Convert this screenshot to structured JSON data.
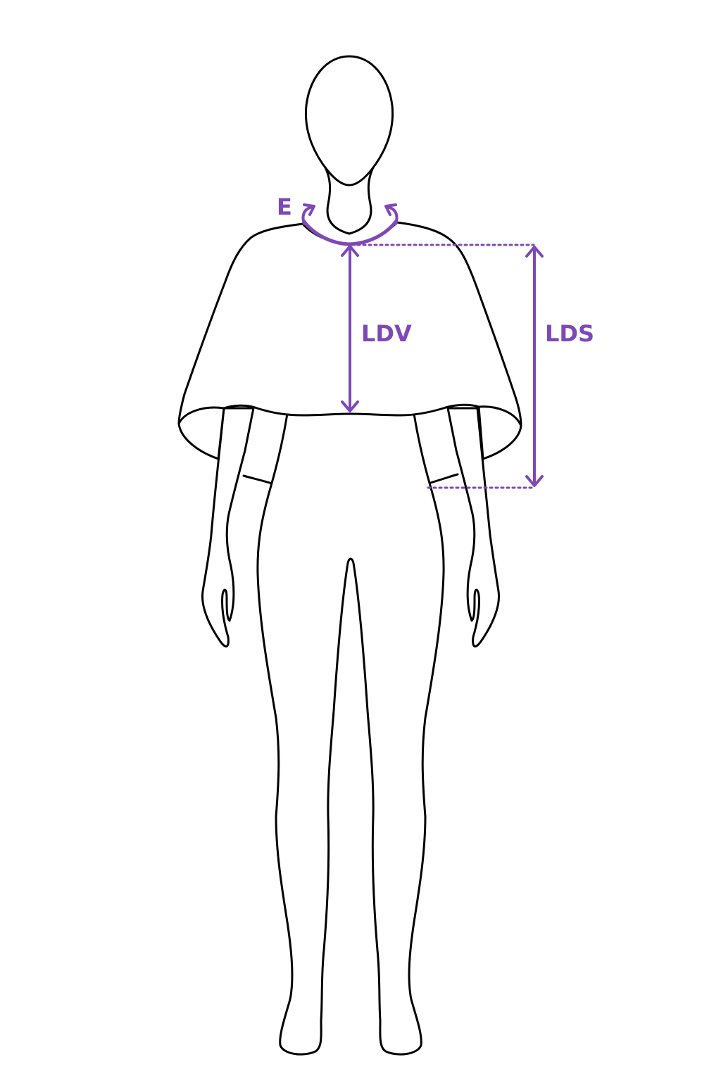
{
  "colors": {
    "accent": "#7E48B8",
    "outline": "#000000",
    "background": "#ffffff"
  },
  "labels": {
    "neck": "E",
    "front_length": "LDV",
    "side_length": "LDS"
  }
}
